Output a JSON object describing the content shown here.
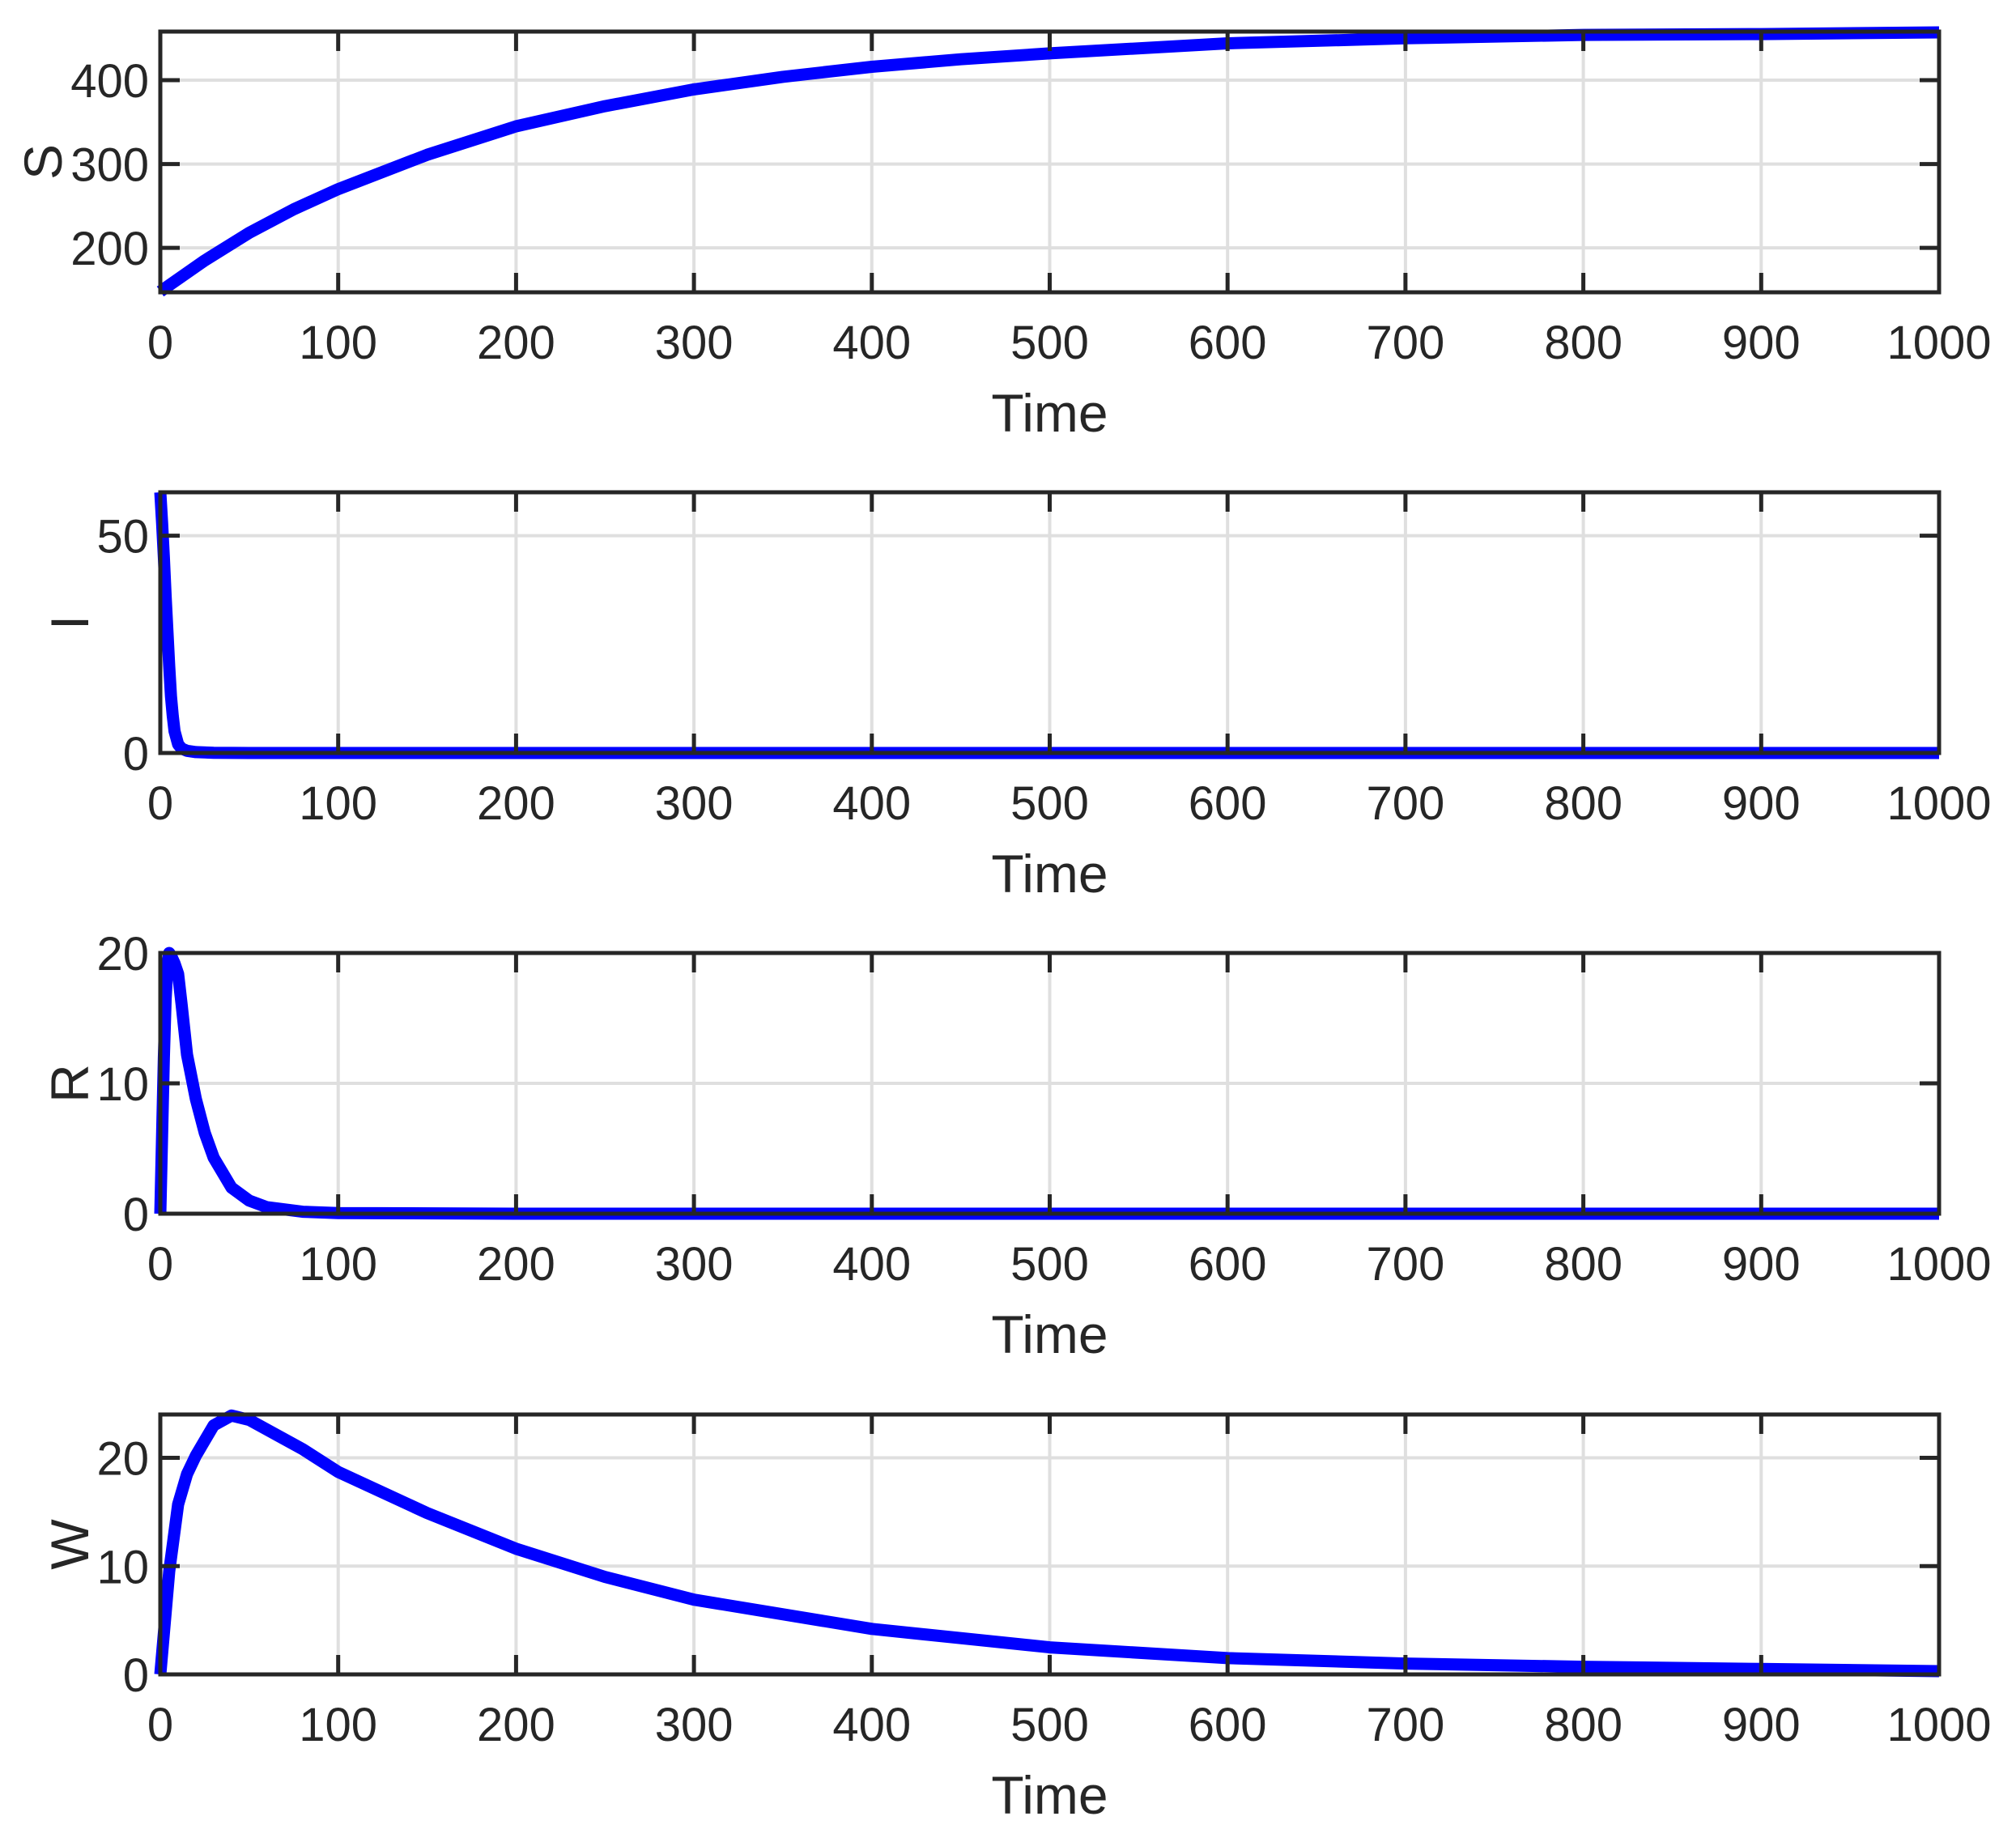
{
  "figure": {
    "background": "#ffffff",
    "axis_color": "#262626",
    "grid_color": "#dfdfdf",
    "line_color": "#0000ff"
  },
  "chart_data": [
    {
      "type": "line",
      "title": "",
      "xlabel": "Time",
      "ylabel": "S",
      "xlim": [
        0,
        1000
      ],
      "ylim": [
        147,
        458
      ],
      "xticks": [
        0,
        100,
        200,
        300,
        400,
        500,
        600,
        700,
        800,
        900,
        1000
      ],
      "yticks": [
        200,
        300,
        400
      ],
      "grid": true,
      "legend": null,
      "series": [
        {
          "name": "S",
          "color": "#0000ff",
          "x": [
            0,
            25,
            50,
            75,
            100,
            150,
            200,
            250,
            300,
            350,
            400,
            450,
            500,
            600,
            700,
            800,
            900,
            1000
          ],
          "y": [
            148,
            185,
            218,
            246,
            270,
            311,
            345,
            369,
            389,
            404,
            416,
            425,
            432,
            444,
            450,
            454,
            455,
            457
          ]
        }
      ]
    },
    {
      "type": "line",
      "title": "",
      "xlabel": "Time",
      "ylabel": "I",
      "xlim": [
        0,
        1000
      ],
      "ylim": [
        0,
        60
      ],
      "xticks": [
        0,
        100,
        200,
        300,
        400,
        500,
        600,
        700,
        800,
        900,
        1000
      ],
      "yticks": [
        0,
        50
      ],
      "grid": true,
      "legend": null,
      "series": [
        {
          "name": "I",
          "color": "#0000ff",
          "x": [
            0,
            1,
            2,
            3,
            4,
            5,
            6,
            7,
            8,
            10,
            12,
            15,
            20,
            30,
            50,
            100,
            200,
            500,
            1000
          ],
          "y": [
            60,
            53,
            45,
            36,
            28,
            20,
            13,
            8.5,
            5,
            2,
            1,
            0.5,
            0.2,
            0.05,
            0,
            0,
            0,
            0,
            0
          ]
        }
      ]
    },
    {
      "type": "line",
      "title": "",
      "xlabel": "Time",
      "ylabel": "R",
      "xlim": [
        0,
        1000
      ],
      "ylim": [
        0,
        20
      ],
      "xticks": [
        0,
        100,
        200,
        300,
        400,
        500,
        600,
        700,
        800,
        900,
        1000
      ],
      "yticks": [
        0,
        10,
        20
      ],
      "grid": true,
      "legend": null,
      "series": [
        {
          "name": "R",
          "color": "#0000ff",
          "x": [
            0,
            1,
            2,
            3,
            4,
            5,
            6,
            8,
            10,
            12,
            15,
            20,
            25,
            30,
            40,
            50,
            60,
            80,
            100,
            200,
            500,
            1000
          ],
          "y": [
            0,
            6,
            12,
            16.5,
            19,
            20,
            19.8,
            19.2,
            18.4,
            16,
            12.2,
            8.8,
            6.2,
            4.3,
            2.0,
            1.0,
            0.5,
            0.15,
            0.05,
            0,
            0,
            0
          ]
        }
      ]
    },
    {
      "type": "line",
      "title": "",
      "xlabel": "Time",
      "ylabel": "W",
      "xlim": [
        0,
        1000
      ],
      "ylim": [
        0,
        24
      ],
      "xticks": [
        0,
        100,
        200,
        300,
        400,
        500,
        600,
        700,
        800,
        900,
        1000
      ],
      "yticks": [
        0,
        10,
        20
      ],
      "grid": true,
      "legend": null,
      "series": [
        {
          "name": "W",
          "color": "#0000ff",
          "x": [
            0,
            5,
            10,
            15,
            20,
            30,
            40,
            50,
            60,
            80,
            100,
            150,
            200,
            250,
            300,
            400,
            500,
            600,
            700,
            800,
            900,
            1000
          ],
          "y": [
            0,
            9.5,
            15.7,
            18.5,
            20.2,
            23,
            23.9,
            23.5,
            22.6,
            20.8,
            18.7,
            14.9,
            11.6,
            9.0,
            6.9,
            4.2,
            2.5,
            1.5,
            1.0,
            0.7,
            0.5,
            0.3
          ]
        }
      ]
    }
  ]
}
